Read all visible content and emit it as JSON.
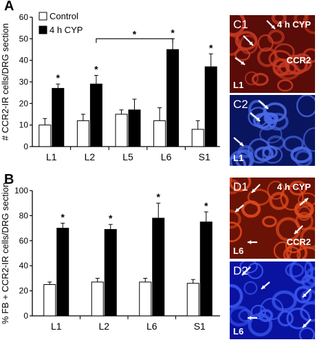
{
  "panels": {
    "A": "A",
    "B": "B"
  },
  "chart_data": [
    {
      "type": "bar",
      "panel": "A",
      "categories": [
        "L1",
        "L2",
        "L5",
        "L6",
        "S1"
      ],
      "series": [
        {
          "name": "Control",
          "values": [
            10,
            12,
            15,
            12,
            8
          ],
          "errors": [
            3,
            3,
            2,
            6,
            4
          ],
          "color": "#ffffff"
        },
        {
          "name": "4 h CYP",
          "values": [
            27,
            29,
            17,
            45,
            37
          ],
          "errors": [
            2,
            4,
            5,
            5,
            6
          ],
          "color": "#000000"
        }
      ],
      "significant": [
        true,
        true,
        false,
        true,
        true
      ],
      "significance_marker": "*",
      "bracket_marker": "*",
      "ylabel": "# CCR2-IR cells/DRG section",
      "ylim": [
        0,
        60
      ],
      "yticks": [
        "0",
        "10",
        "20",
        "30",
        "40",
        "50",
        "60"
      ],
      "legend": "top-left"
    },
    {
      "type": "bar",
      "panel": "B",
      "categories": [
        "L1",
        "L2",
        "L6",
        "S1"
      ],
      "series": [
        {
          "name": "",
          "values": [
            25,
            27,
            27,
            26
          ],
          "errors": [
            2,
            3,
            3,
            3
          ],
          "color": "#ffffff"
        },
        {
          "name": "",
          "values": [
            70,
            69,
            78,
            75
          ],
          "errors": [
            4,
            4,
            12,
            8
          ],
          "color": "#000000"
        }
      ],
      "significant": [
        true,
        true,
        true,
        true
      ],
      "significance_marker": "*",
      "ylabel": "% FB + CCR2-IR cells/DRG section",
      "ylim": [
        0,
        100
      ],
      "yticks": [
        "0",
        "20",
        "40",
        "60",
        "80",
        "100"
      ]
    }
  ],
  "micrographs": [
    {
      "id": "C1",
      "condition": "4 h CYP",
      "stain": "CCR2",
      "level": "L1",
      "base": "#5a0c08",
      "cell": "#c83a22"
    },
    {
      "id": "C2",
      "condition": "",
      "stain": "",
      "level": "L1",
      "base": "#0a1560",
      "cell": "#4a6ae8"
    },
    {
      "id": "D1",
      "condition": "4 h CYP",
      "stain": "CCR2",
      "level": "L6",
      "base": "#6a1206",
      "cell": "#e04a1c"
    },
    {
      "id": "D2",
      "condition": "",
      "stain": "",
      "level": "L6",
      "base": "#0a12a0",
      "cell": "#3a58f0"
    }
  ]
}
